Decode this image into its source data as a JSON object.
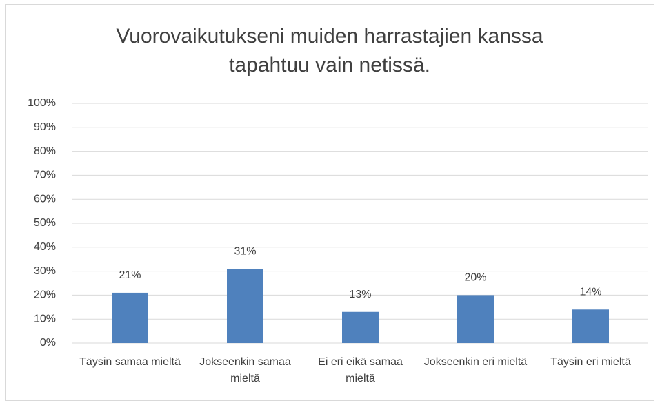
{
  "chart_data": {
    "type": "bar",
    "title": "Vuorovaikutukseni muiden harrastajien kanssa tapahtuu vain netissä.",
    "categories": [
      "Täysin samaa mieltä",
      "Jokseenkin samaa mieltä",
      "Ei eri eikä samaa mieltä",
      "Jokseenkin eri mieltä",
      "Täysin eri mieltä"
    ],
    "values": [
      21,
      31,
      13,
      20,
      14
    ],
    "value_labels": [
      "21%",
      "31%",
      "13%",
      "20%",
      "14%"
    ],
    "color": "#4f81bd",
    "ylim": [
      0,
      100
    ],
    "yticks": [
      {
        "value": 0,
        "label": "0%"
      },
      {
        "value": 10,
        "label": "10%"
      },
      {
        "value": 20,
        "label": "20%"
      },
      {
        "value": 30,
        "label": "30%"
      },
      {
        "value": 40,
        "label": "40%"
      },
      {
        "value": 50,
        "label": "50%"
      },
      {
        "value": 60,
        "label": "60%"
      },
      {
        "value": 70,
        "label": "70%"
      },
      {
        "value": 80,
        "label": "80%"
      },
      {
        "value": 90,
        "label": "90%"
      },
      {
        "value": 100,
        "label": "100%"
      }
    ],
    "grid": true
  }
}
